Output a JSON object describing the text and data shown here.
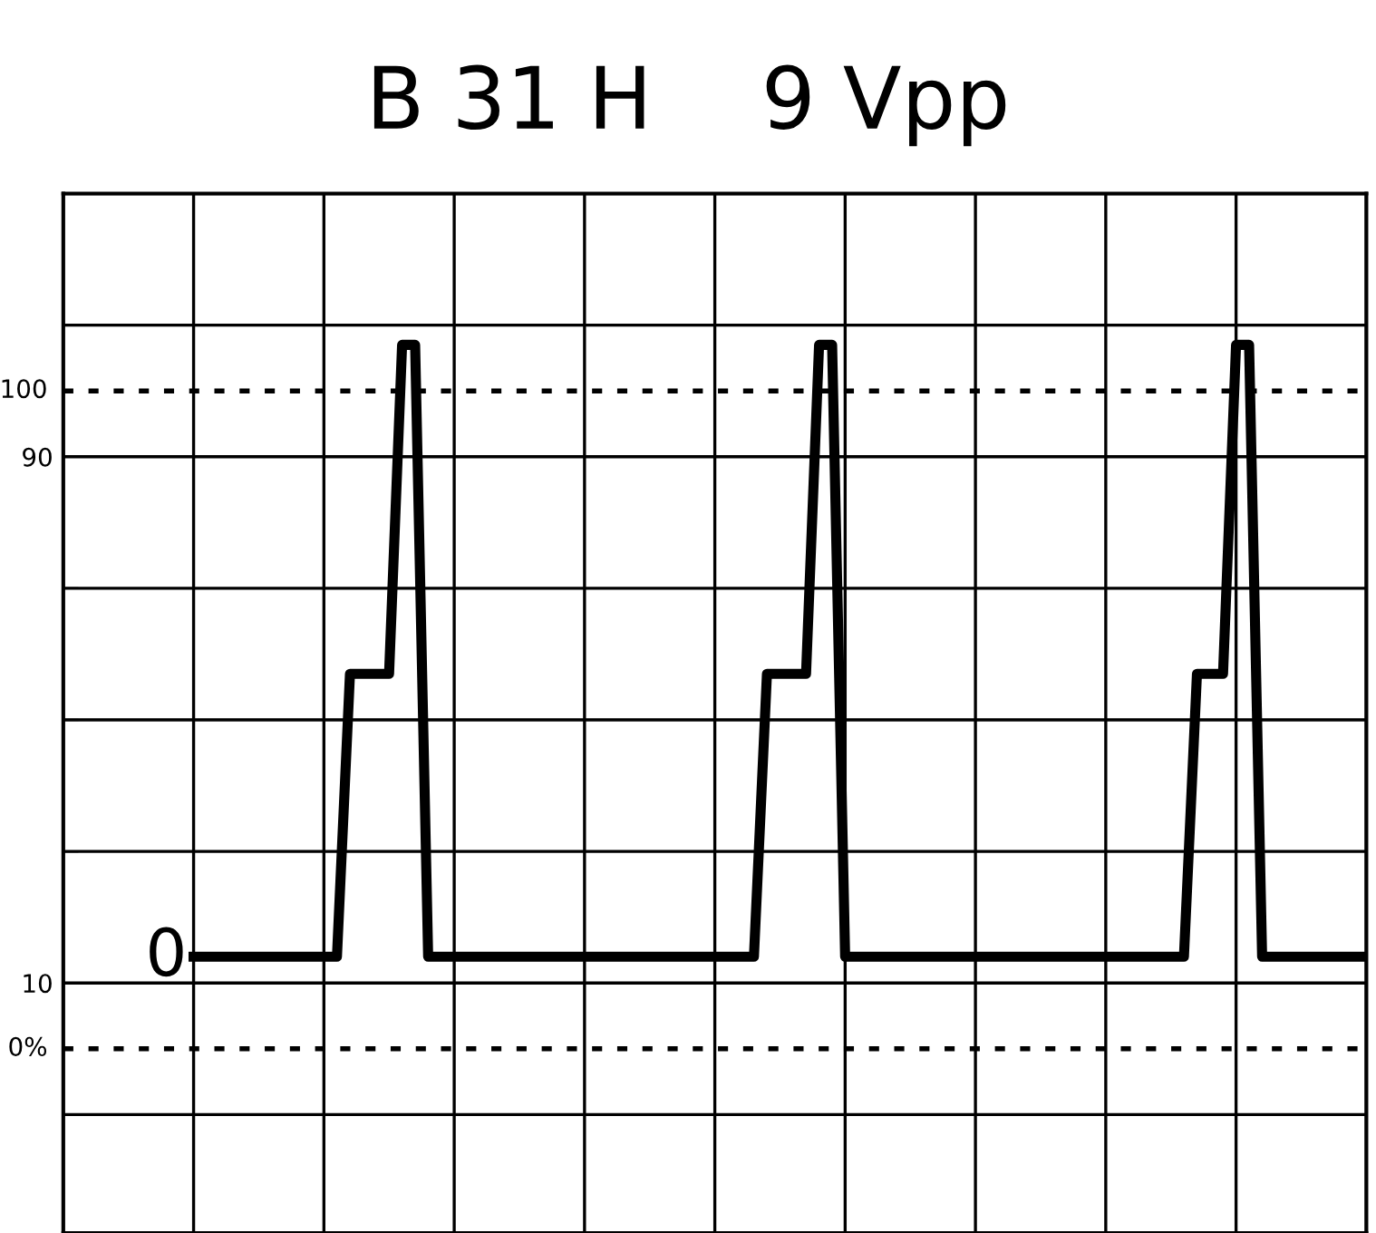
{
  "chart_data": {
    "type": "line",
    "title": "B 31 H    9 Vpp",
    "categories": [
      null,
      null,
      null,
      null,
      null,
      null,
      null,
      null,
      null,
      null,
      null,
      null,
      null,
      null,
      null,
      null,
      null,
      null,
      null,
      null,
      null,
      null,
      null,
      null,
      null,
      null,
      null,
      null,
      null,
      null,
      null,
      null,
      null,
      null,
      null,
      null,
      null,
      null,
      null,
      null,
      null,
      null,
      null,
      null,
      null,
      null,
      null,
      null,
      null,
      null,
      null,
      null,
      null,
      null,
      null,
      null,
      null,
      null,
      null,
      null,
      null,
      null,
      null,
      null,
      null,
      null,
      null,
      null,
      null,
      null,
      null,
      null,
      null,
      null,
      null,
      null,
      null,
      null,
      null,
      null,
      null,
      null,
      null,
      null,
      null,
      null,
      null,
      null,
      null,
      null,
      null
    ],
    "series": [
      {
        "color": "#000000",
        "values": [
          14,
          14,
          14,
          14,
          14,
          14,
          14,
          14,
          14,
          14,
          14,
          14,
          57,
          57,
          57,
          57,
          107,
          107,
          14,
          14,
          14,
          14,
          14,
          14,
          14,
          14,
          14,
          14,
          14,
          14,
          14,
          14,
          14,
          14,
          14,
          14,
          14,
          14,
          14,
          14,
          14,
          14,
          14,
          14,
          57,
          57,
          57,
          57,
          107,
          107,
          14,
          14,
          14,
          14,
          14,
          14,
          14,
          14,
          14,
          14,
          14,
          14,
          14,
          14,
          14,
          14,
          14,
          14,
          14,
          14,
          14,
          14,
          14,
          14,
          14,
          14,
          14,
          57,
          57,
          57,
          107,
          107,
          14,
          14,
          14,
          14,
          14,
          14,
          14,
          14,
          14
        ]
      }
    ],
    "ylim": [
      -28,
      130
    ],
    "yticks": [
      {
        "value": -10,
        "label": null
      },
      10,
      {
        "value": 30,
        "label": null
      },
      {
        "value": 50,
        "label": null
      },
      {
        "value": 70,
        "label": null
      },
      90,
      {
        "value": 110,
        "label": null
      },
      {
        "value": 130,
        "label": null
      }
    ],
    "tick_labels": "y",
    "grid": true,
    "marker": "none",
    "line_style": "solid",
    "ref_lines": [
      {
        "axis": "y",
        "value": 100,
        "label": "100",
        "line_style": "dotted",
        "color": "#000000"
      },
      {
        "axis": "y",
        "value": 0,
        "label": "0%",
        "line_style": "dotted",
        "color": "#000000"
      }
    ],
    "annotations": [
      "0"
    ]
  }
}
